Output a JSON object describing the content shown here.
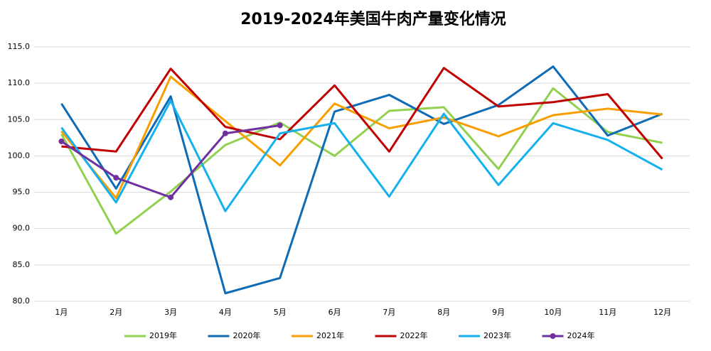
{
  "chart_data": {
    "type": "line",
    "title": "2019-2024年美国牛肉产量变化情况",
    "categories": [
      "1月",
      "2月",
      "3月",
      "4月",
      "5月",
      "6月",
      "7月",
      "8月",
      "9月",
      "10月",
      "11月",
      "12月"
    ],
    "series": [
      {
        "name": "2019年",
        "color": "#92d050",
        "values": [
          103.0,
          89.3,
          95.1,
          101.5,
          104.6,
          100.0,
          106.2,
          106.7,
          98.2,
          109.3,
          103.3,
          101.8
        ]
      },
      {
        "name": "2020年",
        "color": "#0e6bb5",
        "values": [
          107.2,
          95.5,
          108.2,
          81.1,
          83.2,
          106.1,
          108.4,
          104.4,
          107.0,
          112.3,
          102.8,
          105.8
        ]
      },
      {
        "name": "2021年",
        "color": "#f99e00",
        "values": [
          103.4,
          94.2,
          110.9,
          104.8,
          98.7,
          107.2,
          103.8,
          105.3,
          102.7,
          105.6,
          106.5,
          105.7
        ]
      },
      {
        "name": "2022年",
        "color": "#c00000",
        "values": [
          101.3,
          100.6,
          112.0,
          104.0,
          102.3,
          109.7,
          100.6,
          112.1,
          106.8,
          107.4,
          108.5,
          99.6
        ]
      },
      {
        "name": "2023年",
        "color": "#15b1ef",
        "values": [
          103.9,
          93.6,
          107.6,
          92.4,
          103.1,
          104.5,
          94.4,
          105.8,
          96.0,
          104.5,
          102.2,
          98.1
        ]
      },
      {
        "name": "2024年",
        "color": "#7030a0",
        "values": [
          102.0,
          97.0,
          94.3,
          103.1,
          104.2,
          null,
          null,
          null,
          null,
          null,
          null,
          null
        ],
        "marker": true
      }
    ],
    "ylim": [
      80,
      115
    ],
    "yticks": [
      {
        "value": 80,
        "label": "80.0"
      },
      {
        "value": 85,
        "label": "85.0"
      },
      {
        "value": 90,
        "label": "90.0"
      },
      {
        "value": 95,
        "label": "95.0"
      },
      {
        "value": 100,
        "label": "100.0"
      },
      {
        "value": 105,
        "label": "105.0"
      },
      {
        "value": 110,
        "label": "110.0"
      },
      {
        "value": 115,
        "label": "115.0"
      }
    ],
    "grid": true,
    "legend": "bottom"
  }
}
